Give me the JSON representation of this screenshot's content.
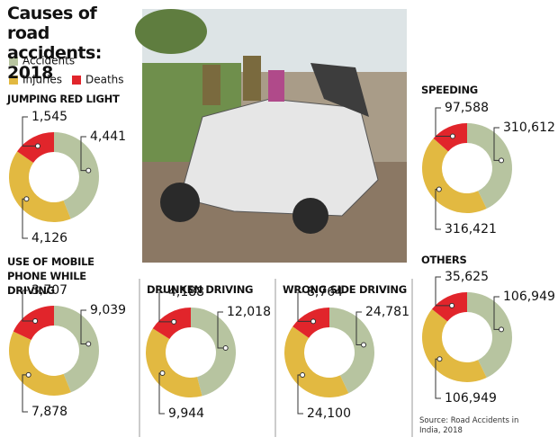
{
  "title": "Causes of road accidents: 2018",
  "legend": [
    {
      "name": "Accidents",
      "color": "#b7c4a0"
    },
    {
      "name": "Injuries",
      "color": "#e2b941"
    },
    {
      "name": "Deaths",
      "color": "#e1252b"
    }
  ],
  "source": "Source: Road Accidents in India, 2018",
  "chart_data": [
    {
      "type": "pie",
      "title": "JUMPING RED LIGHT",
      "values": [
        4441,
        4126,
        1545
      ],
      "value_labels": [
        "4,441",
        "4,126",
        "1,545"
      ]
    },
    {
      "type": "pie",
      "title": "SPEEDING",
      "values": [
        310612,
        316421,
        97588
      ],
      "value_labels": [
        "310,612",
        "316,421",
        "97,588"
      ]
    },
    {
      "type": "pie",
      "title": "USE OF MOBILE PHONE WHILE DRIVING",
      "values": [
        9039,
        7878,
        3707
      ],
      "value_labels": [
        "9,039",
        "7,878",
        "3,707"
      ]
    },
    {
      "type": "pie",
      "title": "DRUNKEN DRIVING",
      "values": [
        12018,
        9944,
        4188
      ],
      "value_labels": [
        "12,018",
        "9,944",
        "4,188"
      ]
    },
    {
      "type": "pie",
      "title": "WRONG SIDE DRIVING",
      "values": [
        24781,
        24100,
        8764
      ],
      "value_labels": [
        "24,781",
        "24,100",
        "8,764"
      ]
    },
    {
      "type": "pie",
      "title": "OTHERS",
      "values": [
        106949,
        106949,
        35625
      ],
      "value_labels": [
        "106,949",
        "106,949",
        "35,625"
      ]
    }
  ]
}
